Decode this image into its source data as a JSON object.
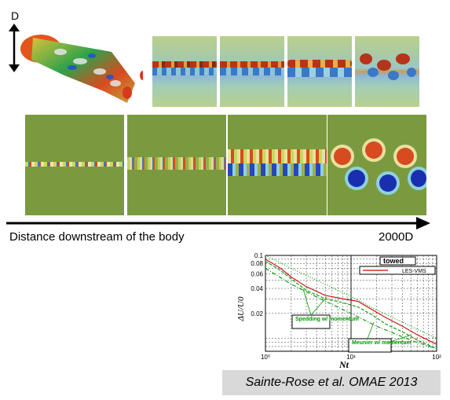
{
  "labels": {
    "dimension": "D",
    "distance_caption": "Distance downstream of the body",
    "distance_end": "2000D",
    "citation": "Sainte-Rose et al. OMAE 2013"
  },
  "chart_data": {
    "type": "line",
    "xscale": "log",
    "yscale": "log",
    "xlim": [
      1,
      100
    ],
    "ylim": [
      0.007,
      0.1
    ],
    "xlabel": "Nt",
    "ylabel": "ΔU/U0",
    "x_ticks": [
      "10⁰",
      "10¹",
      "10²"
    ],
    "y_ticks": [
      "0.1",
      "0.08",
      "0.06",
      "0.04",
      "0.02"
    ],
    "legend": {
      "title": "towed",
      "entries": [
        "LES-VMS"
      ],
      "position": "top-right"
    },
    "annotations": [
      "Spedding w/ momentum",
      "Meunier w/ momentum"
    ],
    "series": [
      {
        "name": "LES-VMS",
        "color": "#cc0000",
        "style": "solid",
        "x": [
          1,
          1.5,
          2,
          3,
          5,
          8,
          12,
          18,
          25,
          40,
          60,
          100
        ],
        "y": [
          0.09,
          0.07,
          0.055,
          0.042,
          0.033,
          0.03,
          0.028,
          0.022,
          0.018,
          0.014,
          0.011,
          0.0085
        ]
      },
      {
        "color": "#009900",
        "style": "dashed",
        "x": [
          1,
          1.5,
          2,
          3,
          5,
          8,
          12,
          18,
          25,
          40,
          60,
          100
        ],
        "y": [
          0.085,
          0.066,
          0.052,
          0.038,
          0.03,
          0.027,
          0.024,
          0.019,
          0.015,
          0.012,
          0.0095,
          0.0075
        ]
      },
      {
        "color": "#009900",
        "style": "dashdot",
        "x": [
          1,
          2,
          5,
          10,
          20,
          50,
          100
        ],
        "y": [
          0.07,
          0.045,
          0.028,
          0.02,
          0.014,
          0.0095,
          0.0075
        ]
      },
      {
        "color": "#009900",
        "style": "dotted",
        "x": [
          1,
          2,
          5,
          10,
          20,
          50,
          100
        ],
        "y": [
          0.1,
          0.07,
          0.045,
          0.032,
          0.022,
          0.014,
          0.01
        ]
      }
    ]
  }
}
